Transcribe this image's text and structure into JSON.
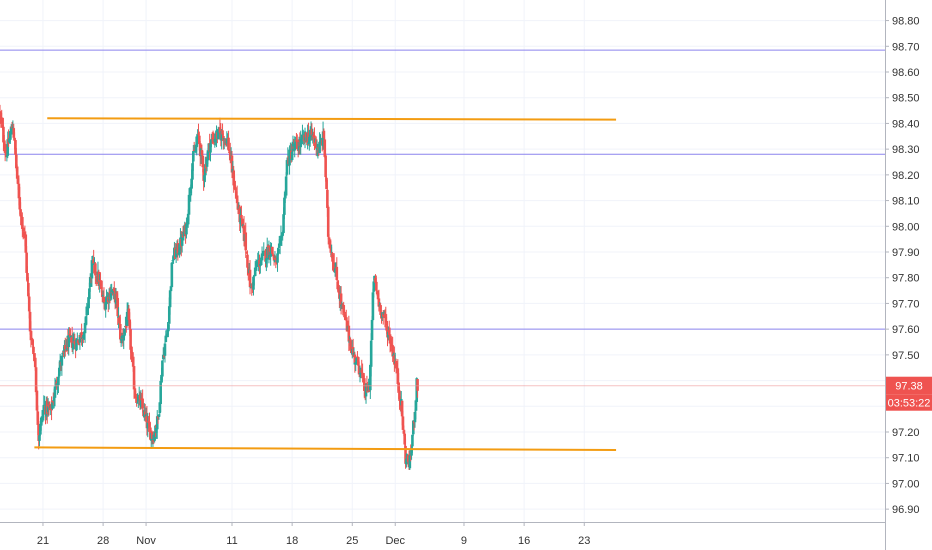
{
  "chart_data": {
    "type": "candlestick",
    "title": "",
    "xlabel": "",
    "ylabel": "",
    "ylim": [
      96.85,
      98.88
    ],
    "y_ticks": [
      "96.90",
      "97.00",
      "97.10",
      "97.20",
      "97.30",
      "97.40",
      "97.50",
      "97.60",
      "97.70",
      "97.80",
      "97.90",
      "98.00",
      "98.10",
      "98.20",
      "98.30",
      "98.40",
      "98.50",
      "98.60",
      "98.70",
      "98.80"
    ],
    "x_ticks": [
      {
        "label": "21",
        "x": 14
      },
      {
        "label": "28",
        "x": 21
      },
      {
        "label": "Nov",
        "x": 26
      },
      {
        "label": "11",
        "x": 36
      },
      {
        "label": "18",
        "x": 43
      },
      {
        "label": "25",
        "x": 50
      },
      {
        "label": "Dec",
        "x": 55
      },
      {
        "label": "9",
        "x": 63
      },
      {
        "label": "16",
        "x": 70
      },
      {
        "label": "23",
        "x": 77
      }
    ],
    "xlim": [
      9,
      112
    ],
    "current_price": {
      "label": "97.38",
      "value": 97.38,
      "countdown": "03:53:22"
    },
    "horizontal_lines": [
      {
        "value": 98.685,
        "color": "#8c84ee"
      },
      {
        "value": 98.28,
        "color": "#8c84ee"
      },
      {
        "value": 97.6,
        "color": "#8c84ee"
      }
    ],
    "trend_lines": [
      {
        "x1": 14.5,
        "y1": 98.42,
        "x2": 80.7,
        "y2": 98.415,
        "color": "#f39c12"
      },
      {
        "x1": 13.0,
        "y1": 97.14,
        "x2": 80.7,
        "y2": 97.13,
        "color": "#f39c12"
      }
    ],
    "up_color": "#26a69a",
    "down_color": "#ef5350",
    "waypoints": [
      [
        9.0,
        98.45
      ],
      [
        9.8,
        98.28
      ],
      [
        10.6,
        98.4
      ],
      [
        11.3,
        98.1
      ],
      [
        12.0,
        97.95
      ],
      [
        12.6,
        97.6
      ],
      [
        13.1,
        97.5
      ],
      [
        13.6,
        97.18
      ],
      [
        14.2,
        97.3
      ],
      [
        15.0,
        97.28
      ],
      [
        16.0,
        97.45
      ],
      [
        17.0,
        97.55
      ],
      [
        18.0,
        97.55
      ],
      [
        19.0,
        97.6
      ],
      [
        19.8,
        97.85
      ],
      [
        20.5,
        97.8
      ],
      [
        21.2,
        97.7
      ],
      [
        22.0,
        97.75
      ],
      [
        22.6,
        97.72
      ],
      [
        23.2,
        97.55
      ],
      [
        24.0,
        97.65
      ],
      [
        24.8,
        97.35
      ],
      [
        25.6,
        97.3
      ],
      [
        26.3,
        97.22
      ],
      [
        26.9,
        97.18
      ],
      [
        27.5,
        97.25
      ],
      [
        28.0,
        97.48
      ],
      [
        28.6,
        97.6
      ],
      [
        29.2,
        97.88
      ],
      [
        30.0,
        97.92
      ],
      [
        30.8,
        98.0
      ],
      [
        31.5,
        98.25
      ],
      [
        32.2,
        98.35
      ],
      [
        32.8,
        98.2
      ],
      [
        33.5,
        98.32
      ],
      [
        34.2,
        98.35
      ],
      [
        35.0,
        98.36
      ],
      [
        35.6,
        98.33
      ],
      [
        36.2,
        98.2
      ],
      [
        36.9,
        98.05
      ],
      [
        37.6,
        97.95
      ],
      [
        38.3,
        97.75
      ],
      [
        39.0,
        97.85
      ],
      [
        39.8,
        97.88
      ],
      [
        40.6,
        97.92
      ],
      [
        41.2,
        97.85
      ],
      [
        41.9,
        97.95
      ],
      [
        42.5,
        98.25
      ],
      [
        43.2,
        98.3
      ],
      [
        44.0,
        98.32
      ],
      [
        44.8,
        98.35
      ],
      [
        45.5,
        98.35
      ],
      [
        46.2,
        98.3
      ],
      [
        46.8,
        98.35
      ],
      [
        47.3,
        97.97
      ],
      [
        48.0,
        97.85
      ],
      [
        48.8,
        97.7
      ],
      [
        49.5,
        97.6
      ],
      [
        50.2,
        97.5
      ],
      [
        51.0,
        97.45
      ],
      [
        51.6,
        97.35
      ],
      [
        52.1,
        97.38
      ],
      [
        52.6,
        97.8
      ],
      [
        53.2,
        97.7
      ],
      [
        54.0,
        97.62
      ],
      [
        54.6,
        97.55
      ],
      [
        55.2,
        97.45
      ],
      [
        55.8,
        97.3
      ],
      [
        56.3,
        97.1
      ],
      [
        56.8,
        97.08
      ],
      [
        57.2,
        97.22
      ],
      [
        57.6,
        97.38
      ]
    ]
  }
}
